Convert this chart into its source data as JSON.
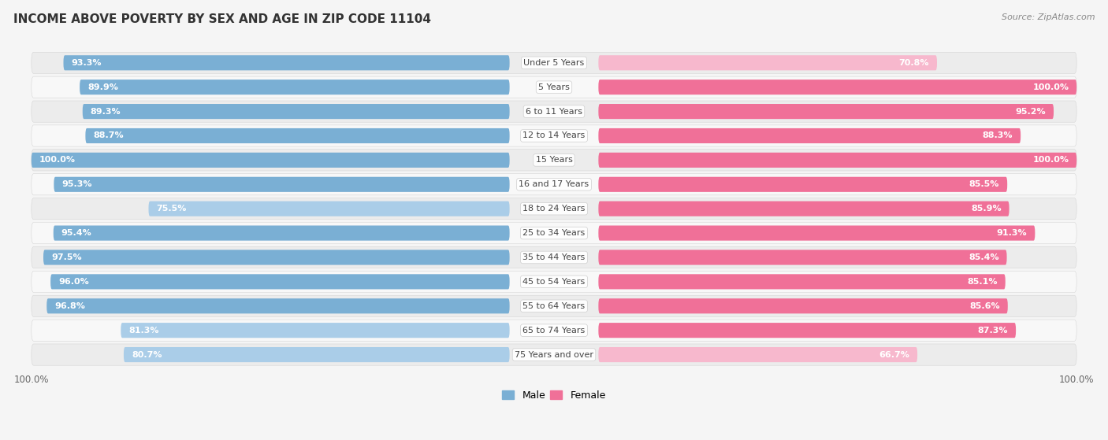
{
  "title": "INCOME ABOVE POVERTY BY SEX AND AGE IN ZIP CODE 11104",
  "source": "Source: ZipAtlas.com",
  "categories": [
    "Under 5 Years",
    "5 Years",
    "6 to 11 Years",
    "12 to 14 Years",
    "15 Years",
    "16 and 17 Years",
    "18 to 24 Years",
    "25 to 34 Years",
    "35 to 44 Years",
    "45 to 54 Years",
    "55 to 64 Years",
    "65 to 74 Years",
    "75 Years and over"
  ],
  "male_values": [
    93.3,
    89.9,
    89.3,
    88.7,
    100.0,
    95.3,
    75.5,
    95.4,
    97.5,
    96.0,
    96.8,
    81.3,
    80.7
  ],
  "female_values": [
    70.8,
    100.0,
    95.2,
    88.3,
    100.0,
    85.5,
    85.9,
    91.3,
    85.4,
    85.1,
    85.6,
    87.3,
    66.7
  ],
  "male_color_light": "#aacde8",
  "male_color": "#7aafd4",
  "female_color_light": "#f7b8cd",
  "female_color": "#f07098",
  "row_bg_light": "#f2f2f2",
  "row_bg_dark": "#e8e8e8",
  "bg_color": "#f5f5f5",
  "title_fontsize": 11,
  "label_fontsize": 8,
  "tick_fontsize": 8.5,
  "source_fontsize": 8
}
